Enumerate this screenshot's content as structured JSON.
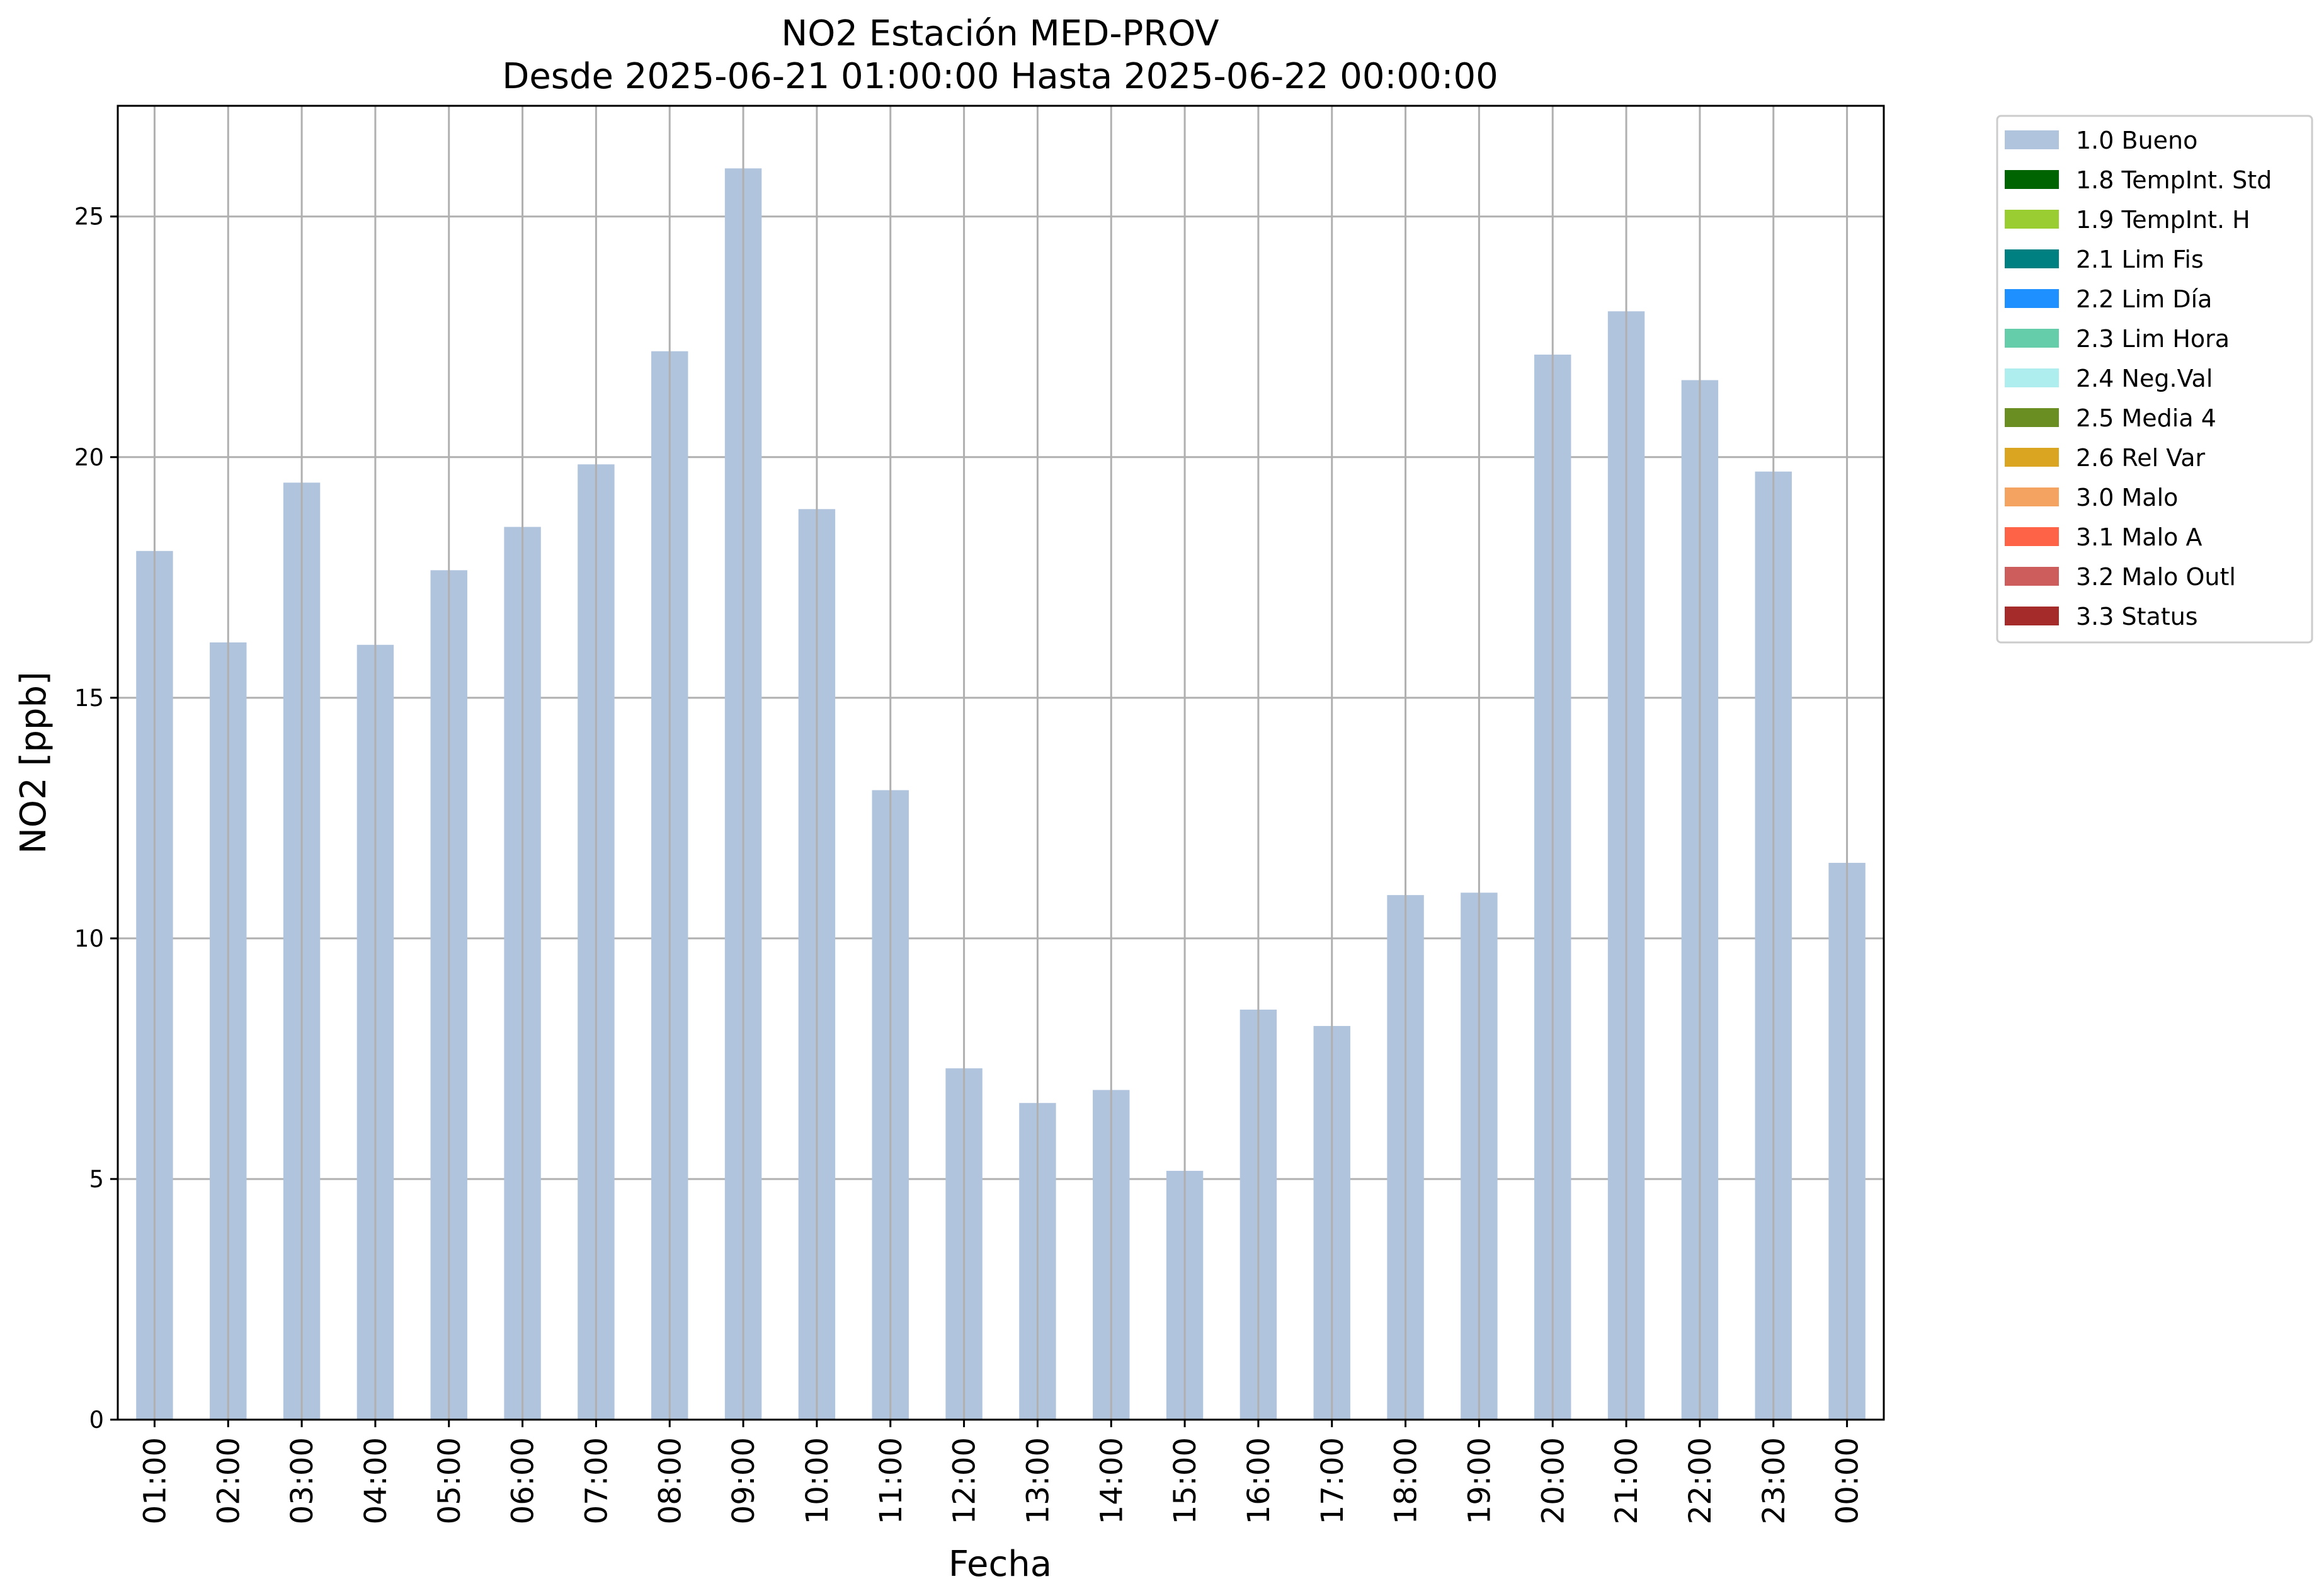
{
  "chart_data": {
    "type": "bar",
    "title": "NO2 Estación MED-PROV",
    "subtitle": "Desde 2025-06-21 01:00:00 Hasta 2025-06-22 00:00:00",
    "xlabel": "Fecha",
    "ylabel": "NO2 [ppb]",
    "categories": [
      "01:00",
      "02:00",
      "03:00",
      "04:00",
      "05:00",
      "06:00",
      "07:00",
      "08:00",
      "09:00",
      "10:00",
      "11:00",
      "12:00",
      "13:00",
      "14:00",
      "15:00",
      "16:00",
      "17:00",
      "18:00",
      "19:00",
      "20:00",
      "21:00",
      "22:00",
      "23:00",
      "00:00"
    ],
    "series": [
      {
        "name": "1.0 Bueno",
        "color": "#b0c4de",
        "values": [
          18.05,
          16.15,
          19.47,
          16.1,
          17.65,
          18.55,
          19.85,
          22.2,
          26.0,
          18.92,
          13.08,
          7.3,
          6.58,
          6.85,
          5.17,
          8.52,
          8.18,
          10.9,
          10.95,
          22.13,
          23.03,
          21.6,
          19.7,
          11.57
        ]
      }
    ],
    "ylim": [
      0,
      27.3
    ],
    "yticks": [
      0,
      5,
      10,
      15,
      20,
      25
    ],
    "grid": true,
    "legend": {
      "placement": "outside-top-right",
      "entries": [
        {
          "label": "1.0 Bueno",
          "color": "#b0c4de"
        },
        {
          "label": "1.8 TempInt. Std",
          "color": "#006400"
        },
        {
          "label": "1.9 TempInt. H",
          "color": "#9acd32"
        },
        {
          "label": "2.1 Lim Fis",
          "color": "#008080"
        },
        {
          "label": "2.2 Lim Día",
          "color": "#1e90ff"
        },
        {
          "label": "2.3 Lim Hora",
          "color": "#66cdaa"
        },
        {
          "label": "2.4 Neg.Val",
          "color": "#afeeee"
        },
        {
          "label": "2.5 Media 4",
          "color": "#6b8e23"
        },
        {
          "label": "2.6 Rel Var",
          "color": "#daa520"
        },
        {
          "label": "3.0 Malo",
          "color": "#f4a460"
        },
        {
          "label": "3.1 Malo A",
          "color": "#ff6347"
        },
        {
          "label": "3.2 Malo Outl",
          "color": "#cd5c5c"
        },
        {
          "label": "3.3 Status",
          "color": "#a52a2a"
        }
      ]
    }
  }
}
